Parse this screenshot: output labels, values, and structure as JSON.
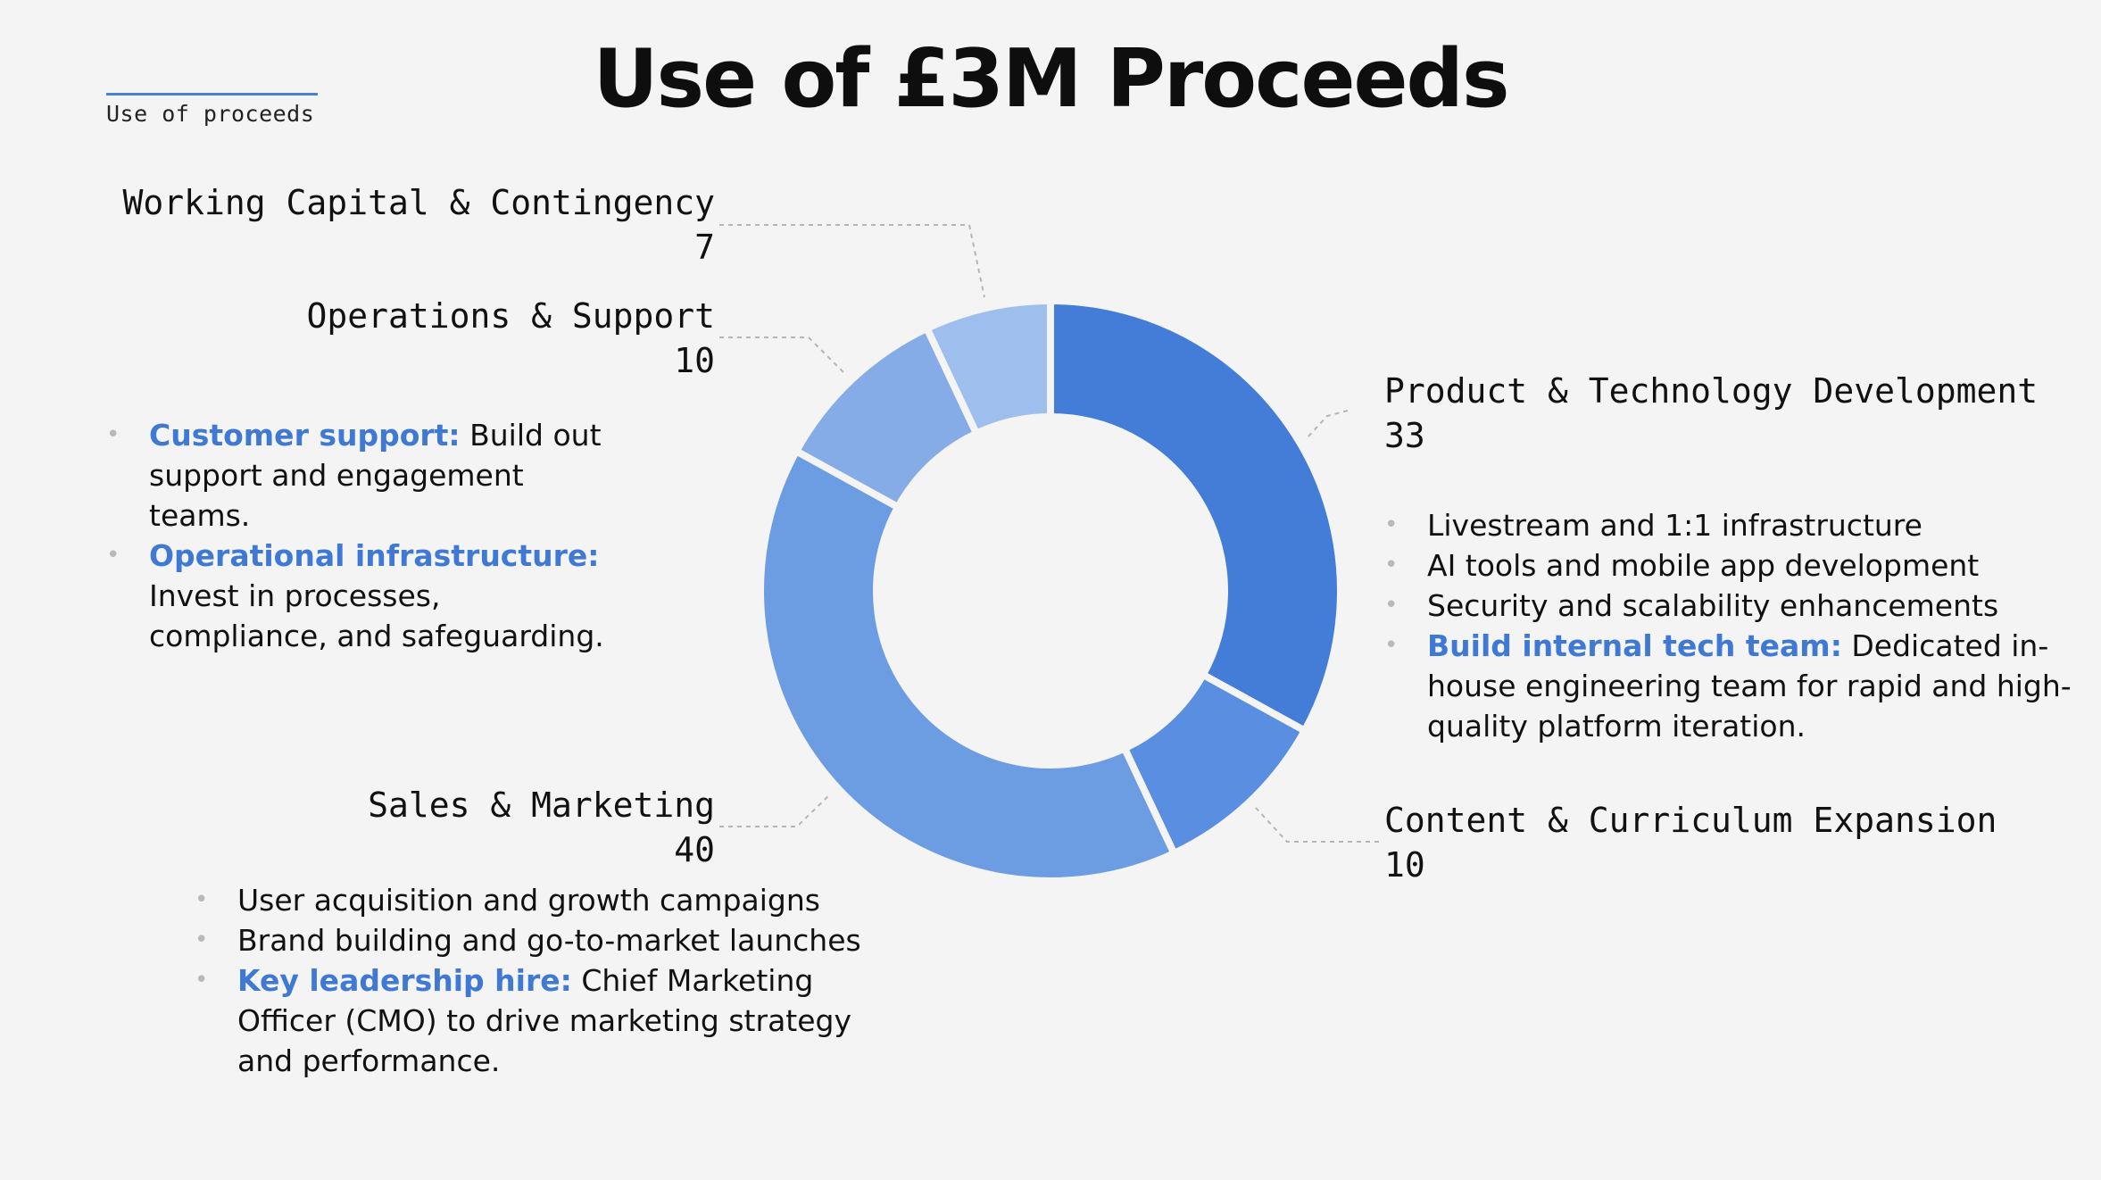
{
  "section_label": "Use of proceeds",
  "title": "Use of £3M Proceeds",
  "chart_data": {
    "type": "pie",
    "donut": true,
    "categories": [
      "Product & Technology Development",
      "Content & Curriculum Expansion",
      "Sales & Marketing",
      "Operations & Support",
      "Working Capital & Contingency"
    ],
    "values": [
      33,
      10,
      40,
      10,
      7
    ],
    "colors": [
      "#437dd8",
      "#5a8ee0",
      "#6c9de3",
      "#85ace7",
      "#9ebeee"
    ]
  },
  "labels": {
    "wcc": {
      "name": "Working Capital & Contingency",
      "value": "7"
    },
    "ops": {
      "name": "Operations & Support",
      "value": "10"
    },
    "ptd": {
      "name": "Product & Technology Development",
      "value": "33"
    },
    "sm": {
      "name": "Sales & Marketing",
      "value": "40"
    },
    "cce": {
      "name": "Content & Curriculum Expansion",
      "value": "10"
    }
  },
  "ops_bullets": [
    {
      "highlight": "Customer support:",
      "text": " Build out support and engagement teams."
    },
    {
      "highlight": "Operational infrastructure:",
      "text": " Invest in processes, compliance, and safeguarding."
    }
  ],
  "ptd_bullets": [
    {
      "highlight": "",
      "text": "Livestream and 1:1 infrastructure"
    },
    {
      "highlight": "",
      "text": "AI tools and mobile app development"
    },
    {
      "highlight": "",
      "text": "Security and scalability enhancements"
    },
    {
      "highlight": "Build internal tech team:",
      "text": " Dedicated in-house engineering team for rapid and high-quality platform iteration."
    }
  ],
  "sm_bullets": [
    {
      "highlight": "",
      "text": "User acquisition and growth campaigns"
    },
    {
      "highlight": "",
      "text": "Brand building and go-to-market launches"
    },
    {
      "highlight": "Key leadership hire:",
      "text": " Chief Marketing Officer (CMO) to drive marketing strategy and performance."
    }
  ]
}
